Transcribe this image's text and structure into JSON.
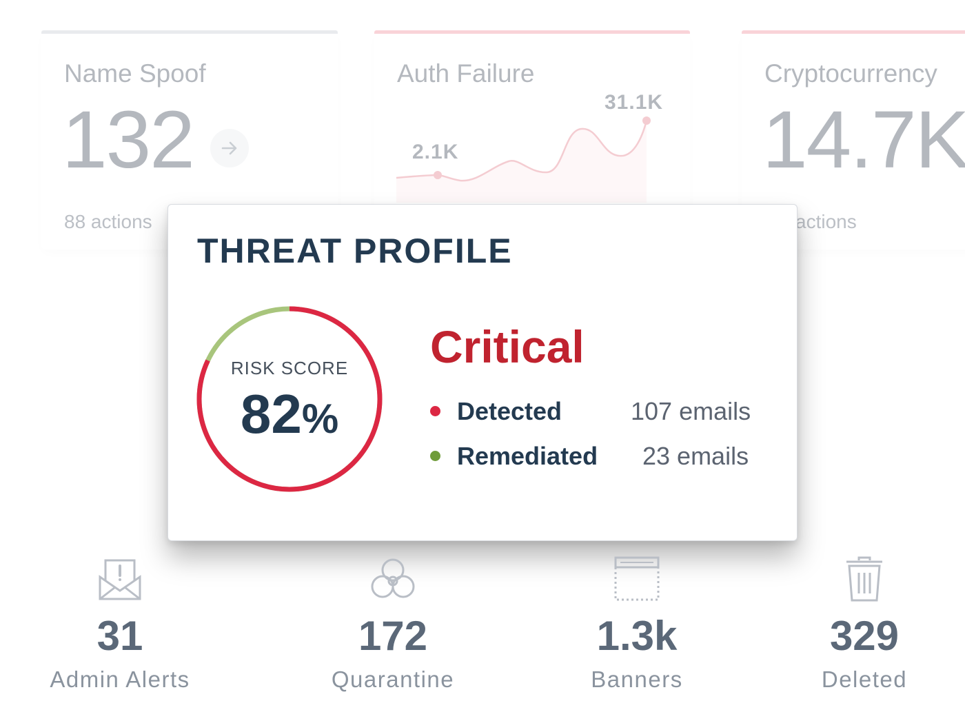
{
  "cards": [
    {
      "title": "Name Spoof",
      "value": "132",
      "sub": "88 actions",
      "accent": "#cfd3da",
      "icon": "arrow-right-icon"
    },
    {
      "title": "Auth Failure",
      "spark_low": "2.1K",
      "spark_high": "31.1K",
      "accent": "#f2a0aa"
    },
    {
      "title": "Cryptocurrency",
      "value": "14.7K",
      "sub": "actions",
      "accent": "#f2a0aa"
    }
  ],
  "popup": {
    "title": "THREAT PROFILE",
    "risk_label": "RISK SCORE",
    "risk_value": "82",
    "risk_unit": "%",
    "risk_fraction": 0.82,
    "severity": "Critical",
    "colors": {
      "danger": "#dc2743",
      "safe": "#a8c57c",
      "severity": "#c0232f"
    },
    "legend": [
      {
        "label": "Detected",
        "value": "107 emails",
        "color": "#dc2743"
      },
      {
        "label": "Remediated",
        "value": "23 emails",
        "color": "#6f9c3a"
      }
    ]
  },
  "stats": [
    {
      "icon": "alert-envelope-icon",
      "value": "31",
      "label": "Admin Alerts"
    },
    {
      "icon": "biohazard-icon",
      "value": "172",
      "label": "Quarantine"
    },
    {
      "icon": "banner-window-icon",
      "value": "1.3k",
      "label": "Banners"
    },
    {
      "icon": "trash-icon",
      "value": "329",
      "label": "Deleted"
    }
  ]
}
